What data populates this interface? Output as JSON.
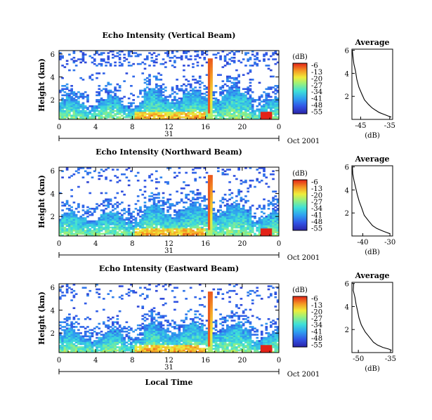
{
  "chart_data": {
    "type": "heatmap",
    "x_label": "Local Time",
    "date_label": "Oct 2001",
    "day_label": "31",
    "x_ticks": [
      "0",
      "4",
      "8",
      "12",
      "16",
      "20",
      "0"
    ],
    "y_label": "Height (km)",
    "y_ticks": [
      "2",
      "4",
      "6"
    ],
    "colorbar": {
      "unit": "(dB)",
      "ticks": [
        "-6",
        "-13",
        "-20",
        "-27",
        "-34",
        "-41",
        "-48",
        "-55"
      ],
      "range": [
        -55,
        -6
      ]
    },
    "panels": [
      {
        "title": "Echo Intensity (Vertical Beam)",
        "average": {
          "title": "Average",
          "xlabel": "(dB)",
          "x_ticks": [
            "-45",
            "-35"
          ],
          "xlim": [
            -48,
            -34
          ],
          "profile": [
            [
              -34.5,
              0.2
            ],
            [
              -35.5,
              0.3
            ],
            [
              -37,
              0.45
            ],
            [
              -38.5,
              0.6
            ],
            [
              -40,
              0.8
            ],
            [
              -41,
              1.0
            ],
            [
              -42.5,
              1.3
            ],
            [
              -43.5,
              1.7
            ],
            [
              -44.5,
              2.2
            ],
            [
              -45.5,
              2.8
            ],
            [
              -46.3,
              3.5
            ],
            [
              -46.8,
              4.2
            ],
            [
              -47.2,
              4.8
            ],
            [
              -47.6,
              5.4
            ],
            [
              -47.8,
              6.0
            ]
          ]
        }
      },
      {
        "title": "Echo Intensity (Northward Beam)",
        "average": {
          "title": "Average",
          "xlabel": "(dB)",
          "x_ticks": [
            "-40",
            "-30"
          ],
          "xlim": [
            -44,
            -29
          ],
          "profile": [
            [
              -30,
              0.2
            ],
            [
              -31,
              0.3
            ],
            [
              -33,
              0.45
            ],
            [
              -35,
              0.65
            ],
            [
              -36.5,
              0.9
            ],
            [
              -38,
              1.3
            ],
            [
              -39.5,
              1.8
            ],
            [
              -40.5,
              2.4
            ],
            [
              -41.5,
              3.0
            ],
            [
              -42.2,
              3.6
            ],
            [
              -42.8,
              4.2
            ],
            [
              -43.2,
              4.8
            ],
            [
              -43.5,
              5.4
            ],
            [
              -43.7,
              6.0
            ]
          ]
        }
      },
      {
        "title": "Echo Intensity (Eastward Beam)",
        "average": {
          "title": "Average",
          "xlabel": "(dB)",
          "x_ticks": [
            "-50",
            "-35"
          ],
          "xlim": [
            -53,
            -34
          ],
          "profile": [
            [
              -34.5,
              0.2
            ],
            [
              -36,
              0.3
            ],
            [
              -38.5,
              0.45
            ],
            [
              -41,
              0.65
            ],
            [
              -43,
              0.9
            ],
            [
              -45,
              1.3
            ],
            [
              -47,
              1.8
            ],
            [
              -48.5,
              2.4
            ],
            [
              -49.5,
              3.0
            ],
            [
              -50.5,
              3.6
            ],
            [
              -51.3,
              4.2
            ],
            [
              -51.8,
              4.8
            ],
            [
              -52.2,
              5.4
            ],
            [
              -52.5,
              6.0
            ]
          ]
        }
      }
    ]
  }
}
